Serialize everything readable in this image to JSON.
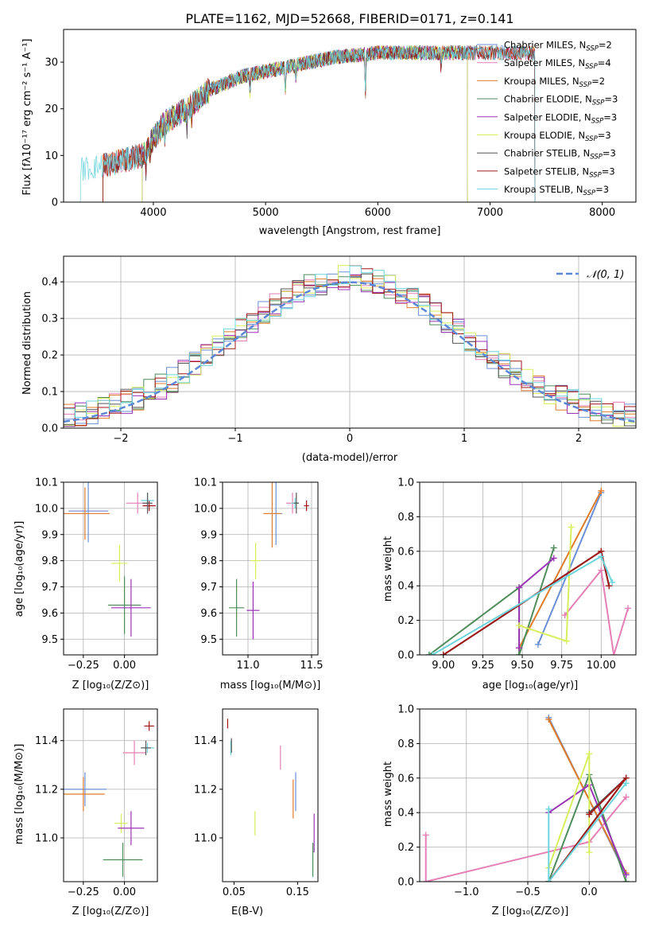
{
  "title": "PLATE=1162, MJD=52668, FIBERID=0171, z=0.141",
  "colors": {
    "blue": "#6a8fd6",
    "pink": "#e57fb5",
    "orange": "#e07b2a",
    "green": "#4e8c5a",
    "purple": "#9a35b5",
    "yellow": "#d6ef5a",
    "gray": "#555555",
    "darkred": "#a01818",
    "cyan": "#6cd4dc"
  },
  "chart_data": [
    {
      "id": "spectrum",
      "type": "line",
      "xlabel": "wavelength [Angstrom, rest frame]",
      "ylabel": "Flux [fλ10⁻¹⁷ erg cm⁻² s⁻¹ A⁻¹]",
      "xlim": [
        3200,
        8300
      ],
      "ylim": [
        0,
        37
      ],
      "xticks": [
        4000,
        5000,
        6000,
        7000,
        8000
      ],
      "yticks": [
        0,
        10,
        20,
        30
      ],
      "legend_position": "top-right",
      "grid": false,
      "series": [
        {
          "name": "Chabrier MILES, N_SSP=2",
          "color_key": "blue",
          "range": [
            3550,
            7400
          ]
        },
        {
          "name": "Salpeter MILES, N_SSP=4",
          "color_key": "pink",
          "range": [
            3550,
            7400
          ]
        },
        {
          "name": "Kroupa MILES, N_SSP=2",
          "color_key": "orange",
          "range": [
            3550,
            7400
          ]
        },
        {
          "name": "Chabrier ELODIE, N_SSP=3",
          "color_key": "green",
          "range": [
            3900,
            6800
          ]
        },
        {
          "name": "Salpeter ELODIE, N_SSP=3",
          "color_key": "purple",
          "range": [
            3900,
            6800
          ]
        },
        {
          "name": "Kroupa ELODIE, N_SSP=3",
          "color_key": "yellow",
          "range": [
            3900,
            6800
          ]
        },
        {
          "name": "Chabrier STELIB, N_SSP=3",
          "color_key": "gray",
          "range": [
            3550,
            7400
          ]
        },
        {
          "name": "Salpeter STELIB, N_SSP=3",
          "color_key": "darkred",
          "range": [
            3550,
            7400
          ]
        },
        {
          "name": "Kroupa STELIB, N_SSP=3",
          "color_key": "cyan",
          "range": [
            3350,
            7400
          ]
        }
      ],
      "continuum_knots": [
        [
          3350,
          7
        ],
        [
          3600,
          8
        ],
        [
          3900,
          10
        ],
        [
          4100,
          17
        ],
        [
          4300,
          20
        ],
        [
          4500,
          24
        ],
        [
          4800,
          27
        ],
        [
          5200,
          29
        ],
        [
          5600,
          31
        ],
        [
          6000,
          32
        ],
        [
          6500,
          32
        ],
        [
          7000,
          32
        ],
        [
          7400,
          32
        ]
      ]
    },
    {
      "id": "residuals",
      "type": "line",
      "xlabel": "(data-model)/error",
      "ylabel": "Normed distribution",
      "xlim": [
        -2.5,
        2.5
      ],
      "ylim": [
        0,
        0.47
      ],
      "xticks": [
        -2,
        -1,
        0,
        1,
        2
      ],
      "yticks": [
        0.0,
        0.1,
        0.2,
        0.3,
        0.4
      ],
      "grid": true,
      "legend_position": "top-right",
      "normal_label": "𝒩(0, 1)",
      "bin_width": 0.1
    },
    {
      "id": "age-vs-Z",
      "type": "scatter",
      "xlabel": "Z [log₁₀(Z/Z⊙)]",
      "ylabel": "age  [log₁₀(age/yr)]",
      "xlim": [
        -0.37,
        0.2
      ],
      "ylim": [
        9.44,
        10.1
      ],
      "xticks": [
        -0.25,
        0.0
      ],
      "yticks": [
        9.5,
        9.6,
        9.7,
        9.8,
        9.9,
        10.0,
        10.1
      ],
      "grid": true,
      "points": [
        {
          "c": "blue",
          "x": -0.22,
          "y": 9.99,
          "ex": 0.12,
          "ey": 0.12
        },
        {
          "c": "orange",
          "x": -0.24,
          "y": 9.98,
          "ex": 0.15,
          "ey": 0.1
        },
        {
          "c": "pink",
          "x": 0.08,
          "y": 10.02,
          "ex": 0.07,
          "ey": 0.04
        },
        {
          "c": "darkred",
          "x": 0.15,
          "y": 10.01,
          "ex": 0.04,
          "ey": 0.02
        },
        {
          "c": "cyan",
          "x": 0.14,
          "y": 10.03,
          "ex": 0.04,
          "ey": 0.03
        },
        {
          "c": "gray",
          "x": 0.14,
          "y": 10.02,
          "ex": 0.03,
          "ey": 0.04
        },
        {
          "c": "yellow",
          "x": -0.03,
          "y": 9.79,
          "ex": 0.05,
          "ey": 0.07
        },
        {
          "c": "green",
          "x": 0.0,
          "y": 9.63,
          "ex": 0.1,
          "ey": 0.11
        },
        {
          "c": "purple",
          "x": 0.04,
          "y": 9.62,
          "ex": 0.12,
          "ey": 0.11
        }
      ]
    },
    {
      "id": "age-vs-mass",
      "type": "scatter",
      "xlabel": "mass [log₁₀(M/M⊙)]",
      "ylabel": "",
      "xlim": [
        10.8,
        11.55
      ],
      "ylim": [
        9.44,
        10.1
      ],
      "xticks": [
        11.0,
        11.5
      ],
      "yticks": [
        9.5,
        9.6,
        9.7,
        9.8,
        9.9,
        10.0,
        10.1
      ],
      "grid": true,
      "points": [
        {
          "c": "blue",
          "x": 11.22,
          "y": 9.98,
          "ex": 0.05,
          "ey": 0.12
        },
        {
          "c": "orange",
          "x": 11.19,
          "y": 9.98,
          "ex": 0.07,
          "ey": 0.13
        },
        {
          "c": "pink",
          "x": 11.35,
          "y": 10.02,
          "ex": 0.05,
          "ey": 0.04
        },
        {
          "c": "darkred",
          "x": 11.46,
          "y": 10.01,
          "ex": 0.02,
          "ey": 0.02
        },
        {
          "c": "cyan",
          "x": 11.37,
          "y": 10.02,
          "ex": 0.03,
          "ey": 0.02
        },
        {
          "c": "gray",
          "x": 11.38,
          "y": 10.02,
          "ex": 0.02,
          "ey": 0.04
        },
        {
          "c": "yellow",
          "x": 11.06,
          "y": 9.8,
          "ex": 0.04,
          "ey": 0.07
        },
        {
          "c": "green",
          "x": 10.91,
          "y": 9.62,
          "ex": 0.06,
          "ey": 0.11
        },
        {
          "c": "purple",
          "x": 11.04,
          "y": 9.61,
          "ex": 0.05,
          "ey": 0.11
        }
      ]
    },
    {
      "id": "weight-vs-age",
      "type": "line",
      "xlabel": "age  [log₁₀(age/yr)]",
      "ylabel": "mass weight",
      "xlim": [
        8.85,
        10.22
      ],
      "ylim": [
        0,
        1
      ],
      "xticks": [
        9.0,
        9.25,
        9.5,
        9.75,
        10.0
      ],
      "yticks": [
        0.0,
        0.2,
        0.4,
        0.6,
        0.8,
        1.0
      ],
      "grid": true,
      "series": [
        {
          "c": "blue",
          "pts": [
            [
              9.6,
              0.06
            ],
            [
              10.0,
              0.94
            ]
          ]
        },
        {
          "c": "orange",
          "pts": [
            [
              9.48,
              0.04
            ],
            [
              10.0,
              0.95
            ]
          ]
        },
        {
          "c": "pink",
          "pts": [
            [
              9.77,
              0.23
            ],
            [
              10.0,
              0.49
            ],
            [
              10.08,
              0.0
            ],
            [
              10.17,
              0.27
            ]
          ]
        },
        {
          "c": "green",
          "pts": [
            [
              8.91,
              0.0
            ],
            [
              9.48,
              0.39
            ],
            [
              9.48,
              0.0
            ],
            [
              9.7,
              0.62
            ]
          ]
        },
        {
          "c": "purple",
          "pts": [
            [
              9.48,
              0.04
            ],
            [
              9.48,
              0.39
            ],
            [
              9.7,
              0.56
            ]
          ]
        },
        {
          "c": "yellow",
          "pts": [
            [
              9.48,
              0.17
            ],
            [
              9.78,
              0.08
            ],
            [
              9.81,
              0.74
            ]
          ]
        },
        {
          "c": "gray",
          "pts": [
            [
              9.0,
              0.0
            ],
            [
              10.0,
              0.6
            ],
            [
              10.05,
              0.4
            ]
          ]
        },
        {
          "c": "darkred",
          "pts": [
            [
              9.0,
              0.0
            ],
            [
              10.0,
              0.6
            ],
            [
              10.05,
              0.4
            ]
          ]
        },
        {
          "c": "cyan",
          "pts": [
            [
              8.93,
              0.0
            ],
            [
              10.0,
              0.57
            ],
            [
              10.07,
              0.42
            ]
          ]
        }
      ]
    },
    {
      "id": "mass-vs-Z",
      "type": "scatter",
      "xlabel": "Z [log₁₀(Z/Z⊙)]",
      "ylabel": "mass [log₁₀(M/M⊙)]",
      "xlim": [
        -0.37,
        0.2
      ],
      "ylim": [
        10.82,
        11.53
      ],
      "xticks": [
        -0.25,
        0.0
      ],
      "yticks": [
        11.0,
        11.2,
        11.4
      ],
      "grid": true,
      "points": [
        {
          "c": "blue",
          "x": -0.24,
          "y": 11.2,
          "ex": 0.13,
          "ey": 0.07
        },
        {
          "c": "orange",
          "x": -0.25,
          "y": 11.18,
          "ex": 0.13,
          "ey": 0.07
        },
        {
          "c": "pink",
          "x": 0.06,
          "y": 11.35,
          "ex": 0.07,
          "ey": 0.05
        },
        {
          "c": "darkred",
          "x": 0.15,
          "y": 11.46,
          "ex": 0.03,
          "ey": 0.02
        },
        {
          "c": "cyan",
          "x": 0.14,
          "y": 11.37,
          "ex": 0.04,
          "ey": 0.02
        },
        {
          "c": "gray",
          "x": 0.13,
          "y": 11.37,
          "ex": 0.03,
          "ey": 0.03
        },
        {
          "c": "yellow",
          "x": -0.02,
          "y": 11.06,
          "ex": 0.04,
          "ey": 0.04
        },
        {
          "c": "green",
          "x": -0.01,
          "y": 10.91,
          "ex": 0.12,
          "ey": 0.07
        },
        {
          "c": "purple",
          "x": 0.04,
          "y": 11.04,
          "ex": 0.08,
          "ey": 0.07
        }
      ]
    },
    {
      "id": "mass-vs-EBV",
      "type": "scatter",
      "xlabel": "E(B-V)",
      "ylabel": "",
      "xlim": [
        0.032,
        0.182
      ],
      "ylim": [
        10.82,
        11.53
      ],
      "xticks": [
        0.05,
        0.15
      ],
      "yticks": [
        11.0,
        11.2,
        11.4
      ],
      "grid": false,
      "points": [
        {
          "c": "darkred",
          "x": 0.04,
          "y": 11.47,
          "ex": 0.0,
          "ey": 0.02
        },
        {
          "c": "cyan",
          "x": 0.045,
          "y": 11.37,
          "ex": 0.0,
          "ey": 0.03
        },
        {
          "c": "gray",
          "x": 0.046,
          "y": 11.38,
          "ex": 0.0,
          "ey": 0.03
        },
        {
          "c": "yellow",
          "x": 0.083,
          "y": 11.06,
          "ex": 0.0,
          "ey": 0.05
        },
        {
          "c": "pink",
          "x": 0.123,
          "y": 11.33,
          "ex": 0.0,
          "ey": 0.05
        },
        {
          "c": "orange",
          "x": 0.143,
          "y": 11.16,
          "ex": 0.0,
          "ey": 0.08
        },
        {
          "c": "blue",
          "x": 0.147,
          "y": 11.19,
          "ex": 0.0,
          "ey": 0.08
        },
        {
          "c": "green",
          "x": 0.174,
          "y": 10.91,
          "ex": 0.0,
          "ey": 0.07
        },
        {
          "c": "purple",
          "x": 0.176,
          "y": 11.02,
          "ex": 0.0,
          "ey": 0.08
        }
      ]
    },
    {
      "id": "weight-vs-Z",
      "type": "line",
      "xlabel": "Z [log₁₀(Z/Z⊙)]",
      "ylabel": "mass weight",
      "xlim": [
        -1.38,
        0.38
      ],
      "ylim": [
        0,
        1
      ],
      "xticks": [
        -1.0,
        -0.5,
        0.0
      ],
      "yticks": [
        0.0,
        0.2,
        0.4,
        0.6,
        0.8,
        1.0
      ],
      "grid": true,
      "series": [
        {
          "c": "blue",
          "pts": [
            [
              -0.33,
              0.95
            ],
            [
              0.3,
              0.04
            ]
          ]
        },
        {
          "c": "orange",
          "pts": [
            [
              -0.33,
              0.94
            ],
            [
              0.3,
              0.05
            ]
          ]
        },
        {
          "c": "pink",
          "pts": [
            [
              -1.33,
              0.27
            ],
            [
              -1.33,
              0.0
            ],
            [
              0.0,
              0.23
            ],
            [
              0.3,
              0.49
            ]
          ]
        },
        {
          "c": "green",
          "pts": [
            [
              -0.33,
              0.0
            ],
            [
              0.0,
              0.62
            ],
            [
              0.3,
              0.0
            ]
          ]
        },
        {
          "c": "purple",
          "pts": [
            [
              -0.33,
              0.4
            ],
            [
              0.0,
              0.56
            ],
            [
              0.3,
              0.04
            ]
          ]
        },
        {
          "c": "yellow",
          "pts": [
            [
              -0.33,
              0.08
            ],
            [
              0.0,
              0.74
            ],
            [
              0.0,
              0.17
            ]
          ]
        },
        {
          "c": "gray",
          "pts": [
            [
              -0.33,
              0.0
            ],
            [
              0.3,
              0.6
            ],
            [
              0.0,
              0.4
            ]
          ]
        },
        {
          "c": "darkred",
          "pts": [
            [
              -0.33,
              0.0
            ],
            [
              0.3,
              0.6
            ],
            [
              0.0,
              0.39
            ]
          ]
        },
        {
          "c": "cyan",
          "pts": [
            [
              -0.33,
              0.42
            ],
            [
              -0.33,
              0.0
            ],
            [
              0.3,
              0.57
            ]
          ]
        }
      ]
    }
  ]
}
